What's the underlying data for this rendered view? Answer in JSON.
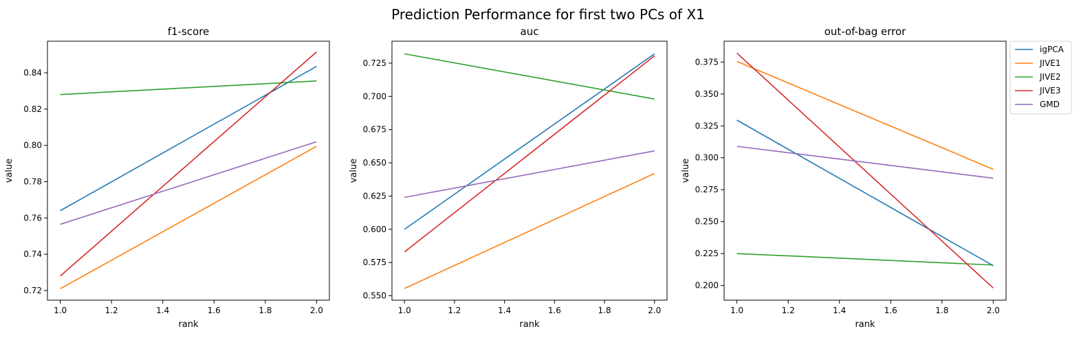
{
  "figure": {
    "title": "Prediction Performance for first two PCs of X1"
  },
  "colors": {
    "igPCA": "#1f77b4",
    "JIVE1": "#ff7f0e",
    "JIVE2": "#2ca02c",
    "JIVE3": "#d62728",
    "GMD": "#9467bd"
  },
  "chart_data": [
    {
      "type": "line",
      "title": "f1-score",
      "xlabel": "rank",
      "ylabel": "value",
      "x": [
        1.0,
        2.0
      ],
      "xlim": [
        0.95,
        2.05
      ],
      "ylim": [
        0.7147,
        0.8574
      ],
      "xticks": [
        "1.0",
        "1.2",
        "1.4",
        "1.6",
        "1.8",
        "2.0"
      ],
      "yticks": [
        "0.72",
        "0.74",
        "0.76",
        "0.78",
        "0.80",
        "0.82",
        "0.84"
      ],
      "series": [
        {
          "name": "igPCA",
          "values": [
            0.764,
            0.8435
          ]
        },
        {
          "name": "JIVE1",
          "values": [
            0.721,
            0.7995
          ]
        },
        {
          "name": "JIVE2",
          "values": [
            0.828,
            0.8355
          ]
        },
        {
          "name": "JIVE3",
          "values": [
            0.728,
            0.8515
          ]
        },
        {
          "name": "GMD",
          "values": [
            0.7565,
            0.802
          ]
        }
      ]
    },
    {
      "type": "line",
      "title": "auc",
      "xlabel": "rank",
      "ylabel": "value",
      "x": [
        1.0,
        2.0
      ],
      "xlim": [
        0.95,
        2.05
      ],
      "ylim": [
        0.5467,
        0.7415
      ],
      "xticks": [
        "1.0",
        "1.2",
        "1.4",
        "1.6",
        "1.8",
        "2.0"
      ],
      "yticks": [
        "0.550",
        "0.575",
        "0.600",
        "0.625",
        "0.650",
        "0.675",
        "0.700",
        "0.725"
      ],
      "series": [
        {
          "name": "igPCA",
          "values": [
            0.6,
            0.732
          ]
        },
        {
          "name": "JIVE1",
          "values": [
            0.5555,
            0.642
          ]
        },
        {
          "name": "JIVE2",
          "values": [
            0.732,
            0.698
          ]
        },
        {
          "name": "JIVE3",
          "values": [
            0.583,
            0.7305
          ]
        },
        {
          "name": "GMD",
          "values": [
            0.624,
            0.659
          ]
        }
      ]
    },
    {
      "type": "line",
      "title": "out-of-bag error",
      "xlabel": "rank",
      "ylabel": "value",
      "x": [
        1.0,
        2.0
      ],
      "xlim": [
        0.95,
        2.05
      ],
      "ylim": [
        0.1885,
        0.3913
      ],
      "xticks": [
        "1.0",
        "1.2",
        "1.4",
        "1.6",
        "1.8",
        "2.0"
      ],
      "yticks": [
        "0.200",
        "0.225",
        "0.250",
        "0.275",
        "0.300",
        "0.325",
        "0.350",
        "0.375"
      ],
      "legend": {
        "placement": "outside-top-right",
        "entries": [
          "igPCA",
          "JIVE1",
          "JIVE2",
          "JIVE3",
          "GMD"
        ]
      },
      "series": [
        {
          "name": "igPCA",
          "values": [
            0.3295,
            0.2155
          ]
        },
        {
          "name": "JIVE1",
          "values": [
            0.3755,
            0.291
          ]
        },
        {
          "name": "JIVE2",
          "values": [
            0.225,
            0.216
          ]
        },
        {
          "name": "JIVE3",
          "values": [
            0.382,
            0.198
          ]
        },
        {
          "name": "GMD",
          "values": [
            0.309,
            0.284
          ]
        }
      ]
    }
  ]
}
